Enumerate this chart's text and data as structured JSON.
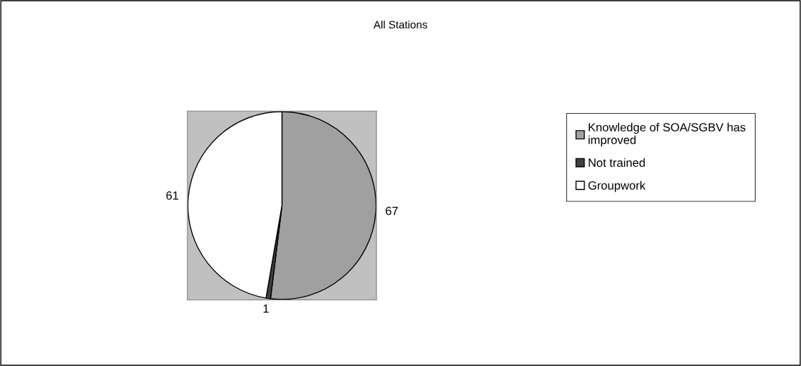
{
  "chart_data": {
    "type": "pie",
    "title": "All Stations",
    "categories": [
      "Knowledge of SOA/SGBV has improved",
      "Not trained",
      "Groupwork"
    ],
    "values": [
      67,
      1,
      61
    ],
    "colors": [
      "#a0a0a0",
      "#404040",
      "#ffffff"
    ],
    "data_labels": true,
    "legend": "right"
  }
}
